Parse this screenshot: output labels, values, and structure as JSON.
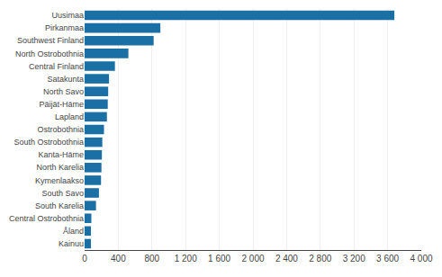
{
  "chart_data": {
    "type": "bar",
    "orientation": "horizontal",
    "categories": [
      "Uusimaa",
      "Pirkanmaa",
      "Southwest Finland",
      "North Ostrobothnia",
      "Central Finland",
      "Satakunta",
      "North Savo",
      "Päijät-Häme",
      "Lapland",
      "Ostrobothnia",
      "South Ostrobothnia",
      "Kanta-Häme",
      "North Karelia",
      "Kymenlaakso",
      "South Savo",
      "South Karelia",
      "Central Ostrobothnia",
      "Åland",
      "Kainuu"
    ],
    "values": [
      3680,
      900,
      820,
      520,
      360,
      290,
      280,
      275,
      265,
      230,
      210,
      205,
      200,
      195,
      170,
      135,
      80,
      75,
      75
    ],
    "color": "#1a6fa5",
    "xlim": [
      0,
      4000
    ],
    "xticks": [
      0,
      400,
      800,
      {
        "value": 1200,
        "label": "1 200"
      },
      {
        "value": 1600,
        "label": "1 600"
      },
      {
        "value": 2000,
        "label": "2 000"
      },
      {
        "value": 2400,
        "label": "2 400"
      },
      {
        "value": 2800,
        "label": "2 800"
      },
      {
        "value": 3200,
        "label": "3 200"
      },
      {
        "value": 3600,
        "label": "3 600"
      },
      {
        "value": 4000,
        "label": "4 000"
      }
    ],
    "grid": true
  }
}
